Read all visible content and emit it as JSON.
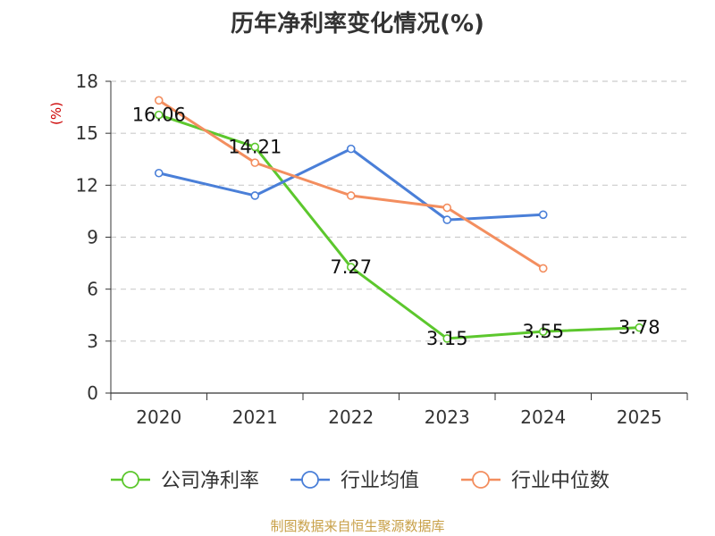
{
  "chart_data": {
    "type": "line",
    "title": "历年净利率变化情况(%)",
    "xlabel": "",
    "ylabel": "(%)",
    "categories": [
      "2020",
      "2021",
      "2022",
      "2023",
      "2024",
      "2025"
    ],
    "ylim": [
      0,
      18
    ],
    "yticks": [
      0,
      3,
      6,
      9,
      12,
      15,
      18
    ],
    "grid": true,
    "legend_position": "bottom",
    "series": [
      {
        "name": "公司净利率",
        "color": "#5cc72d",
        "values": [
          16.06,
          14.21,
          7.27,
          3.15,
          3.55,
          3.78
        ],
        "labels": [
          "16.06",
          "14.21",
          "7.27",
          "3.15",
          "3.55",
          "3.78"
        ]
      },
      {
        "name": "行业均值",
        "color": "#4a7fd8",
        "values": [
          12.7,
          11.4,
          14.1,
          10.0,
          10.3,
          null
        ]
      },
      {
        "name": "行业中位数",
        "color": "#f38e5f",
        "values": [
          16.9,
          13.3,
          11.4,
          10.7,
          7.2,
          null
        ]
      }
    ]
  },
  "source_note": "制图数据来自恒生聚源数据库"
}
